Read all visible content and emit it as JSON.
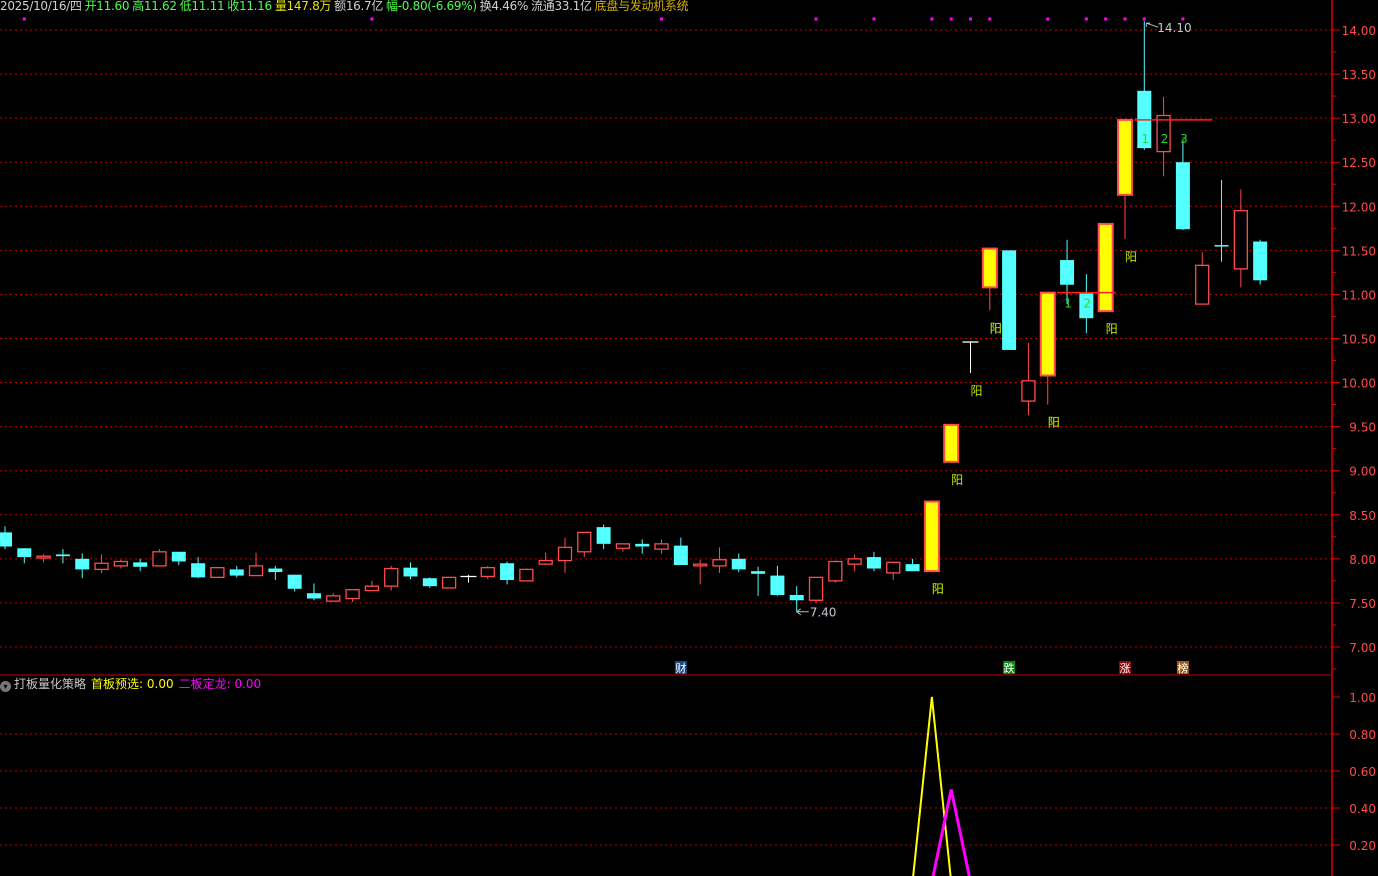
{
  "header": {
    "date": "2025/10/16/四",
    "open": "开11.60",
    "high": "高11.62",
    "low": "低11.11",
    "close": "收11.16",
    "volume": "量147.8万",
    "amount": "额16.7亿",
    "change": "幅-0.80(-6.69%)",
    "turnover": "换4.46%",
    "float_cap": "流通33.1亿",
    "sector": "底盘与发动机系统"
  },
  "indicator": {
    "name": "打板量化策略",
    "series1_label": "首板预选: 0.00",
    "series2_label": "二板定龙: 0.00",
    "collapse_icon": "chevron-down-circle-icon"
  },
  "colors": {
    "up": "#ff4b4b",
    "down": "#54ffff",
    "limit_up_fill": "#ffff00",
    "grid": "#c00000",
    "axis": "#e00000",
    "axis_text": "#ff4b4b",
    "signal_dot": "#ff00ff",
    "series1": "#ffff00",
    "series2": "#ff00ff"
  },
  "chart_data": [
    {
      "type": "candlestick",
      "ylim": [
        6.9,
        14.25
      ],
      "yticks": [
        "7.00",
        "7.50",
        "8.00",
        "8.50",
        "9.00",
        "9.50",
        "10.00",
        "10.50",
        "11.00",
        "11.50",
        "12.00",
        "12.50",
        "13.00",
        "13.50",
        "14.00"
      ],
      "grid": true,
      "ohlc": [
        [
          8.3,
          8.37,
          8.11,
          8.14
        ],
        [
          8.12,
          8.12,
          7.95,
          8.02
        ],
        [
          8.01,
          8.05,
          7.96,
          8.03
        ],
        [
          8.05,
          8.11,
          7.95,
          8.03
        ],
        [
          8.0,
          8.06,
          7.78,
          7.88
        ],
        [
          7.88,
          8.05,
          7.84,
          7.95
        ],
        [
          7.92,
          7.99,
          7.89,
          7.97
        ],
        [
          7.96,
          8.0,
          7.86,
          7.91
        ],
        [
          7.92,
          8.11,
          7.92,
          8.08
        ],
        [
          8.08,
          8.08,
          7.93,
          7.97
        ],
        [
          7.95,
          8.02,
          7.78,
          7.79
        ],
        [
          7.79,
          7.91,
          7.79,
          7.9
        ],
        [
          7.88,
          7.92,
          7.79,
          7.81
        ],
        [
          7.81,
          8.07,
          7.81,
          7.92
        ],
        [
          7.89,
          7.92,
          7.76,
          7.85
        ],
        [
          7.82,
          7.82,
          7.63,
          7.66
        ],
        [
          7.61,
          7.72,
          7.53,
          7.55
        ],
        [
          7.52,
          7.61,
          7.51,
          7.58
        ],
        [
          7.55,
          7.65,
          7.51,
          7.65
        ],
        [
          7.64,
          7.75,
          7.64,
          7.69
        ],
        [
          7.69,
          7.92,
          7.64,
          7.89
        ],
        [
          7.9,
          7.96,
          7.77,
          7.8
        ],
        [
          7.78,
          7.79,
          7.67,
          7.69
        ],
        [
          7.67,
          7.79,
          7.67,
          7.79
        ],
        [
          7.8,
          7.82,
          7.73,
          7.8
        ],
        [
          7.8,
          7.92,
          7.77,
          7.9
        ],
        [
          7.95,
          7.97,
          7.71,
          7.76
        ],
        [
          7.75,
          7.89,
          7.75,
          7.88
        ],
        [
          7.94,
          8.07,
          7.93,
          7.98
        ],
        [
          7.98,
          8.24,
          7.84,
          8.13
        ],
        [
          8.08,
          8.3,
          8.02,
          8.3
        ],
        [
          8.36,
          8.39,
          8.11,
          8.17
        ],
        [
          8.12,
          8.17,
          8.08,
          8.17
        ],
        [
          8.17,
          8.22,
          8.06,
          8.14
        ],
        [
          8.11,
          8.22,
          8.06,
          8.17
        ],
        [
          8.15,
          8.24,
          7.93,
          7.93
        ],
        [
          7.92,
          7.99,
          7.71,
          7.94
        ],
        [
          7.92,
          8.13,
          7.84,
          7.99
        ],
        [
          8.0,
          8.06,
          7.85,
          7.88
        ],
        [
          7.86,
          7.91,
          7.58,
          7.83
        ],
        [
          7.81,
          7.92,
          7.58,
          7.59
        ],
        [
          7.59,
          7.69,
          7.4,
          7.53
        ],
        [
          7.53,
          7.79,
          7.5,
          7.79
        ],
        [
          7.75,
          7.98,
          7.73,
          7.97
        ],
        [
          7.94,
          8.05,
          7.86,
          8.0
        ],
        [
          8.02,
          8.08,
          7.86,
          7.89
        ],
        [
          7.84,
          7.96,
          7.76,
          7.96
        ],
        [
          7.94,
          8.0,
          7.86,
          7.86
        ],
        [
          7.86,
          8.65,
          7.86,
          8.65
        ],
        [
          9.1,
          9.52,
          9.1,
          9.52
        ],
        [
          10.46,
          10.46,
          10.11,
          10.46
        ],
        [
          11.08,
          11.52,
          10.82,
          11.52
        ],
        [
          11.5,
          11.5,
          10.37,
          10.37
        ],
        [
          9.79,
          10.45,
          9.63,
          10.02
        ],
        [
          10.08,
          11.02,
          9.75,
          11.02
        ],
        [
          11.39,
          11.62,
          10.89,
          11.11
        ],
        [
          11.01,
          11.23,
          10.56,
          10.73
        ],
        [
          10.81,
          11.8,
          10.81,
          11.8
        ],
        [
          12.13,
          12.98,
          11.63,
          12.98
        ],
        [
          13.31,
          14.1,
          12.64,
          12.66
        ],
        [
          12.62,
          13.24,
          12.34,
          13.03
        ],
        [
          12.5,
          12.76,
          11.73,
          11.74
        ],
        [
          10.89,
          11.48,
          10.89,
          11.33
        ],
        [
          11.56,
          12.3,
          11.37,
          11.55
        ],
        [
          11.29,
          12.19,
          11.08,
          11.95
        ],
        [
          11.6,
          11.62,
          11.11,
          11.16
        ]
      ],
      "limit_up_indices": [
        48,
        49,
        51,
        54,
        57,
        58
      ],
      "yang_label": "阳",
      "yang_indices": [
        48,
        49,
        50,
        51,
        54,
        57,
        58
      ],
      "signal_dot_indices": [
        1,
        19,
        34,
        42,
        45,
        48,
        49,
        50,
        51,
        54,
        56,
        57,
        58,
        59,
        61
      ],
      "count_labels": [
        {
          "index": 55,
          "text": "1",
          "price": 10.85
        },
        {
          "index": 56,
          "text": "2",
          "price": 10.85
        },
        {
          "index": 59,
          "text": "1",
          "price": 12.72
        },
        {
          "index": 60,
          "text": "2",
          "price": 12.72
        },
        {
          "index": 61,
          "text": "3",
          "price": 12.72
        }
      ],
      "level_lines": [
        {
          "from": 55,
          "to": 57,
          "price": 11.02
        },
        {
          "from": 59,
          "to": 62,
          "price": 12.98
        }
      ],
      "annotations": {
        "high_label": "14.10",
        "high_index": 59,
        "high_price": 14.1,
        "low_label": "7.40",
        "low_index": 41,
        "low_price": 7.4
      },
      "event_markers": [
        {
          "index": 35,
          "text": "财",
          "color": "#1a4a8a"
        },
        {
          "index": 52,
          "text": "跌",
          "color": "#0a8a0a"
        },
        {
          "index": 58,
          "text": "涨",
          "color": "#8a0a0a"
        },
        {
          "index": 61,
          "text": "榜",
          "color": "#a05a10"
        }
      ]
    },
    {
      "type": "line",
      "ylim": [
        0,
        1.0
      ],
      "yticks": [
        "0.20",
        "0.40",
        "0.60",
        "0.80",
        "1.00"
      ],
      "grid": true,
      "series": [
        {
          "name": "首板预选",
          "values": [
            0,
            0,
            0,
            0,
            0,
            0,
            0,
            0,
            0,
            0,
            0,
            0,
            0,
            0,
            0,
            0,
            0,
            0,
            0,
            0,
            0,
            0,
            0,
            0,
            0,
            0,
            0,
            0,
            0,
            0,
            0,
            0,
            0,
            0,
            0,
            0,
            0,
            0,
            0,
            0,
            0,
            0,
            0,
            0,
            0,
            0,
            0,
            0,
            1,
            0,
            0,
            0,
            0,
            0,
            0,
            0,
            0,
            0,
            0,
            0,
            0,
            0,
            0,
            0,
            0,
            0
          ]
        },
        {
          "name": "二板定龙",
          "values": [
            0,
            0,
            0,
            0,
            0,
            0,
            0,
            0,
            0,
            0,
            0,
            0,
            0,
            0,
            0,
            0,
            0,
            0,
            0,
            0,
            0,
            0,
            0,
            0,
            0,
            0,
            0,
            0,
            0,
            0,
            0,
            0,
            0,
            0,
            0,
            0,
            0,
            0,
            0,
            0,
            0,
            0,
            0,
            0,
            0,
            0,
            0,
            0,
            0,
            0.5,
            0,
            0,
            0,
            0,
            0,
            0,
            0,
            0,
            0,
            0,
            0,
            0,
            0,
            0,
            0,
            0
          ]
        }
      ]
    }
  ]
}
